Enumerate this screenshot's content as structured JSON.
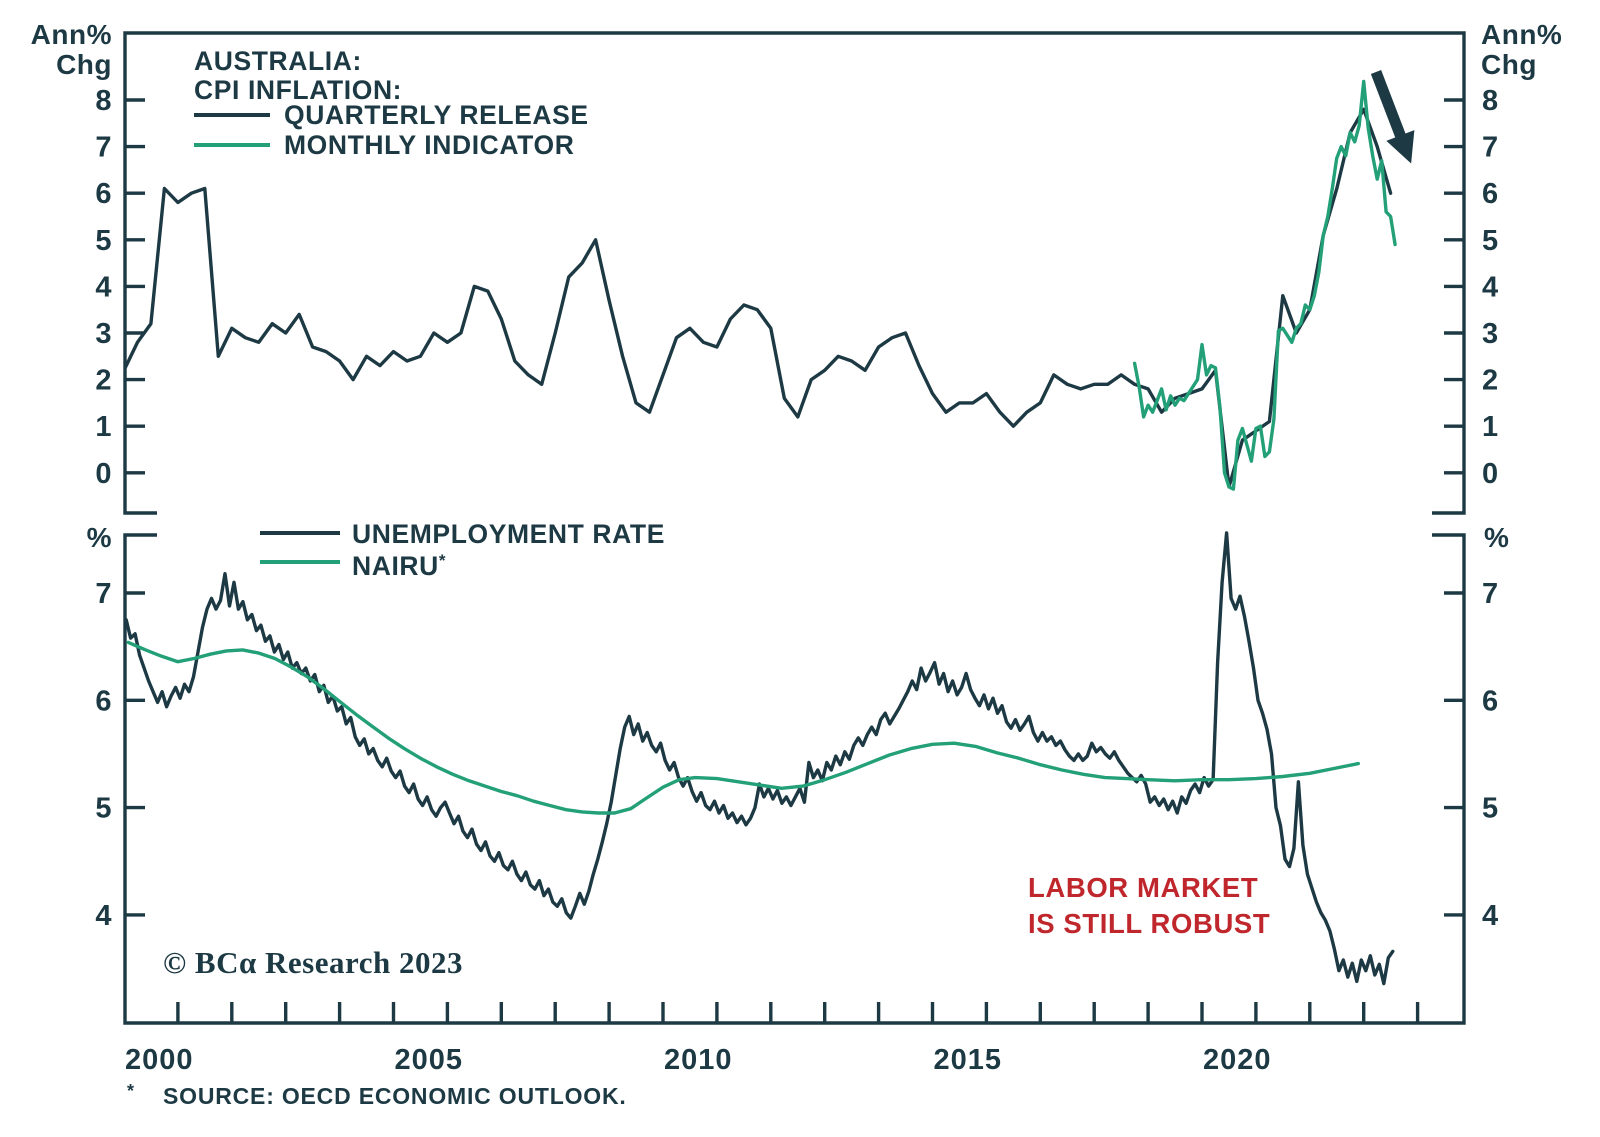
{
  "title": {
    "line1": "AUSTRALIA:",
    "line2": "CPI INFLATION:"
  },
  "colors": {
    "dark": "#1d3a44",
    "green": "#23a078",
    "red": "#c0272d",
    "background": "#ffffff"
  },
  "top_legend": [
    {
      "label": "QUARTERLY RELEASE",
      "color_key": "dark"
    },
    {
      "label": "MONTHLY INDICATOR",
      "color_key": "green"
    }
  ],
  "bottom_legend": [
    {
      "label": "UNEMPLOYMENT RATE",
      "color_key": "dark",
      "sup": ""
    },
    {
      "label": "NAIRU",
      "sup": "*",
      "color_key": "green"
    }
  ],
  "axis_units": {
    "top_left_1": "Ann%",
    "top_left_2": "Chg",
    "top_right_1": "Ann%",
    "top_right_2": "Chg",
    "bottom_left": "%",
    "bottom_right": "%"
  },
  "annotation": {
    "line1": "LABOR MARKET",
    "line2": "IS STILL ROBUST"
  },
  "copyright": "© BCα Research 2023",
  "footnote": {
    "marker": "*",
    "text": "SOURCE: OECD ECONOMIC OUTLOOK."
  },
  "arrow_icon": "down-right-arrow",
  "chart_data": [
    {
      "type": "line",
      "panel": "top",
      "title": "AUSTRALIA: CPI INFLATION",
      "xlabel": "",
      "ylabel": "Ann% Chg",
      "grid": false,
      "legend_position": "top-left",
      "ylim": [
        -0.8,
        9.4
      ],
      "yticks": [
        0,
        1,
        2,
        3,
        4,
        5,
        6,
        7,
        8
      ],
      "xlim": [
        2000,
        2024.87
      ],
      "series": [
        {
          "name": "QUARTERLY RELEASE",
          "color_key": "dark",
          "start": 2000.0,
          "step": 0.25,
          "values": [
            2.2,
            2.8,
            3.2,
            6.1,
            5.8,
            6.0,
            6.1,
            2.5,
            3.1,
            2.9,
            2.8,
            3.2,
            3.0,
            3.4,
            2.7,
            2.6,
            2.4,
            2.0,
            2.5,
            2.3,
            2.6,
            2.4,
            2.5,
            3.0,
            2.8,
            3.0,
            4.0,
            3.9,
            3.3,
            2.4,
            2.1,
            1.9,
            3.0,
            4.2,
            4.5,
            5.0,
            3.7,
            2.5,
            1.5,
            1.3,
            2.1,
            2.9,
            3.1,
            2.8,
            2.7,
            3.3,
            3.6,
            3.5,
            3.1,
            1.6,
            1.2,
            2.0,
            2.2,
            2.5,
            2.4,
            2.2,
            2.7,
            2.9,
            3.0,
            2.3,
            1.7,
            1.3,
            1.5,
            1.5,
            1.7,
            1.3,
            1.0,
            1.3,
            1.5,
            2.1,
            1.9,
            1.8,
            1.9,
            1.9,
            2.1,
            1.9,
            1.8,
            1.3,
            1.6,
            1.7,
            1.8,
            2.2,
            -0.3,
            0.7,
            0.9,
            1.1,
            3.8,
            3.0,
            3.5,
            5.1,
            6.1,
            7.3,
            7.8,
            7.0,
            6.0
          ]
        },
        {
          "name": "MONTHLY INDICATOR",
          "color_key": "green",
          "start": 2018.75,
          "step": 0.08333,
          "values": [
            2.35,
            1.85,
            1.2,
            1.45,
            1.3,
            1.55,
            1.8,
            1.35,
            1.65,
            1.45,
            1.6,
            1.55,
            1.7,
            1.85,
            2.0,
            2.75,
            2.1,
            2.3,
            2.25,
            1.4,
            0.0,
            -0.3,
            -0.35,
            0.7,
            0.95,
            0.6,
            0.25,
            0.95,
            1.0,
            0.35,
            0.45,
            1.15,
            3.05,
            3.1,
            2.95,
            2.8,
            3.1,
            3.2,
            3.6,
            3.5,
            3.8,
            4.3,
            5.1,
            5.5,
            6.1,
            6.75,
            7.0,
            6.8,
            7.3,
            7.1,
            7.45,
            8.4,
            7.4,
            6.8,
            6.3,
            6.7,
            5.6,
            5.5,
            4.9
          ]
        }
      ]
    },
    {
      "type": "line",
      "panel": "bottom",
      "title": "",
      "xlabel": "",
      "ylabel": "%",
      "grid": false,
      "legend_position": "top-left",
      "ylim": [
        3.0,
        7.54
      ],
      "yticks": [
        4,
        5,
        6,
        7
      ],
      "xlim": [
        2000,
        2024.87
      ],
      "xticks": {
        "from": 2001,
        "to": 2024
      },
      "xtick_labels": [
        2000,
        2005,
        2010,
        2015,
        2020
      ],
      "series": [
        {
          "name": "UNEMPLOYMENT RATE",
          "color_key": "dark",
          "start": 2000.04,
          "step": 0.08333,
          "values": [
            6.75,
            6.58,
            6.62,
            6.42,
            6.3,
            6.18,
            6.08,
            5.98,
            6.08,
            5.94,
            6.04,
            6.12,
            6.02,
            6.15,
            6.08,
            6.22,
            6.45,
            6.68,
            6.85,
            6.95,
            6.85,
            6.93,
            7.18,
            6.88,
            7.1,
            6.85,
            6.92,
            6.75,
            6.8,
            6.65,
            6.7,
            6.55,
            6.6,
            6.45,
            6.52,
            6.38,
            6.45,
            6.3,
            6.35,
            6.25,
            6.3,
            6.18,
            6.24,
            6.08,
            6.14,
            5.98,
            6.04,
            5.9,
            5.94,
            5.78,
            5.84,
            5.66,
            5.58,
            5.64,
            5.5,
            5.55,
            5.44,
            5.38,
            5.46,
            5.34,
            5.28,
            5.34,
            5.2,
            5.14,
            5.22,
            5.08,
            5.02,
            5.1,
            4.98,
            4.92,
            5.0,
            5.05,
            4.95,
            4.85,
            4.92,
            4.78,
            4.72,
            4.8,
            4.66,
            4.6,
            4.68,
            4.55,
            4.5,
            4.58,
            4.46,
            4.42,
            4.5,
            4.38,
            4.32,
            4.4,
            4.28,
            4.24,
            4.32,
            4.18,
            4.24,
            4.12,
            4.08,
            4.15,
            4.02,
            3.97,
            4.08,
            4.2,
            4.1,
            4.22,
            4.38,
            4.52,
            4.68,
            4.85,
            5.05,
            5.3,
            5.55,
            5.75,
            5.85,
            5.68,
            5.78,
            5.62,
            5.7,
            5.58,
            5.52,
            5.6,
            5.44,
            5.35,
            5.42,
            5.28,
            5.2,
            5.28,
            5.15,
            5.06,
            5.14,
            5.02,
            4.98,
            5.06,
            4.95,
            5.02,
            4.9,
            4.95,
            4.86,
            4.92,
            4.84,
            4.9,
            5.0,
            5.22,
            5.1,
            5.18,
            5.08,
            5.16,
            5.04,
            5.1,
            5.02,
            5.1,
            5.18,
            5.05,
            5.42,
            5.28,
            5.35,
            5.25,
            5.42,
            5.35,
            5.48,
            5.4,
            5.52,
            5.45,
            5.58,
            5.65,
            5.58,
            5.68,
            5.75,
            5.68,
            5.82,
            5.88,
            5.78,
            5.85,
            5.92,
            6.0,
            6.08,
            6.18,
            6.1,
            6.3,
            6.18,
            6.26,
            6.35,
            6.15,
            6.25,
            6.08,
            6.18,
            6.05,
            6.12,
            6.25,
            6.1,
            6.02,
            5.95,
            6.05,
            5.92,
            6.02,
            5.88,
            5.95,
            5.8,
            5.74,
            5.82,
            5.72,
            5.78,
            5.85,
            5.7,
            5.62,
            5.7,
            5.62,
            5.66,
            5.58,
            5.62,
            5.54,
            5.48,
            5.44,
            5.5,
            5.44,
            5.48,
            5.6,
            5.52,
            5.56,
            5.5,
            5.46,
            5.52,
            5.44,
            5.38,
            5.32,
            5.28,
            5.24,
            5.3,
            5.22,
            5.05,
            5.1,
            5.02,
            5.08,
            4.98,
            5.06,
            4.95,
            5.1,
            5.04,
            5.16,
            5.22,
            5.14,
            5.28,
            5.2,
            5.26,
            6.35,
            7.1,
            7.56,
            6.95,
            6.85,
            6.97,
            6.78,
            6.55,
            6.3,
            6.0,
            5.88,
            5.73,
            5.5,
            5.0,
            4.83,
            4.52,
            4.45,
            4.62,
            5.24,
            4.65,
            4.38,
            4.25,
            4.12,
            4.02,
            3.95,
            3.85,
            3.68,
            3.48,
            3.58,
            3.42,
            3.55,
            3.38,
            3.58,
            3.48,
            3.62,
            3.44,
            3.54,
            3.36,
            3.6,
            3.66
          ]
        },
        {
          "name": "NAIRU",
          "color_key": "green",
          "points": [
            [
              2000.08,
              6.54
            ],
            [
              2000.4,
              6.47
            ],
            [
              2000.7,
              6.41
            ],
            [
              2001.0,
              6.36
            ],
            [
              2001.3,
              6.39
            ],
            [
              2001.6,
              6.43
            ],
            [
              2001.9,
              6.46
            ],
            [
              2002.2,
              6.47
            ],
            [
              2002.5,
              6.44
            ],
            [
              2002.8,
              6.39
            ],
            [
              2003.1,
              6.31
            ],
            [
              2003.4,
              6.22
            ],
            [
              2003.7,
              6.11
            ],
            [
              2004.0,
              5.99
            ],
            [
              2004.3,
              5.87
            ],
            [
              2004.6,
              5.76
            ],
            [
              2004.9,
              5.65
            ],
            [
              2005.2,
              5.55
            ],
            [
              2005.5,
              5.46
            ],
            [
              2005.8,
              5.38
            ],
            [
              2006.1,
              5.31
            ],
            [
              2006.4,
              5.25
            ],
            [
              2006.7,
              5.2
            ],
            [
              2007.0,
              5.15
            ],
            [
              2007.3,
              5.11
            ],
            [
              2007.6,
              5.06
            ],
            [
              2007.9,
              5.02
            ],
            [
              2008.2,
              4.98
            ],
            [
              2008.5,
              4.96
            ],
            [
              2008.8,
              4.95
            ],
            [
              2009.1,
              4.95
            ],
            [
              2009.4,
              4.99
            ],
            [
              2009.7,
              5.09
            ],
            [
              2010.0,
              5.19
            ],
            [
              2010.3,
              5.26
            ],
            [
              2010.6,
              5.28
            ],
            [
              2011.0,
              5.27
            ],
            [
              2011.4,
              5.24
            ],
            [
              2011.8,
              5.21
            ],
            [
              2012.2,
              5.18
            ],
            [
              2012.6,
              5.2
            ],
            [
              2013.0,
              5.26
            ],
            [
              2013.4,
              5.33
            ],
            [
              2013.8,
              5.41
            ],
            [
              2014.2,
              5.49
            ],
            [
              2014.6,
              5.55
            ],
            [
              2015.0,
              5.59
            ],
            [
              2015.4,
              5.6
            ],
            [
              2015.8,
              5.57
            ],
            [
              2016.2,
              5.51
            ],
            [
              2016.6,
              5.46
            ],
            [
              2017.0,
              5.4
            ],
            [
              2017.4,
              5.35
            ],
            [
              2017.8,
              5.31
            ],
            [
              2018.2,
              5.28
            ],
            [
              2018.6,
              5.27
            ],
            [
              2019.0,
              5.26
            ],
            [
              2019.5,
              5.25
            ],
            [
              2020.0,
              5.26
            ],
            [
              2020.5,
              5.26
            ],
            [
              2021.0,
              5.27
            ],
            [
              2021.5,
              5.29
            ],
            [
              2022.0,
              5.32
            ],
            [
              2022.4,
              5.36
            ],
            [
              2022.9,
              5.41
            ]
          ]
        }
      ]
    }
  ]
}
